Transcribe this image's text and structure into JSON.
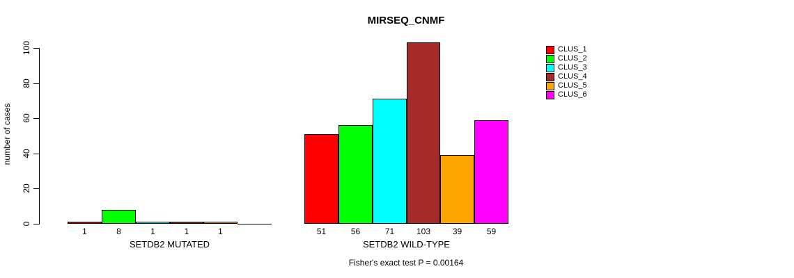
{
  "chart_data": {
    "type": "bar",
    "title": "MIRSEQ_CNMF",
    "xlabel": "",
    "ylabel": "number of cases",
    "ylim": [
      0,
      100
    ],
    "y_ticks": [
      0,
      20,
      40,
      60,
      80,
      100
    ],
    "grid": false,
    "legend_position": "right-inside",
    "series_names": [
      "CLUS_1",
      "CLUS_2",
      "CLUS_3",
      "CLUS_4",
      "CLUS_5",
      "CLUS_6"
    ],
    "colors": [
      "#FF0000",
      "#00FF00",
      "#00FFFF",
      "#A52A2A",
      "#FFA500",
      "#FF00FF"
    ],
    "groups": [
      {
        "label": "SETDB2 MUTATED",
        "values": [
          1,
          8,
          1,
          1,
          1,
          0
        ],
        "bar_labels": [
          "1",
          "8",
          "1",
          "1",
          "1",
          ""
        ]
      },
      {
        "label": "SETDB2 WILD-TYPE",
        "values": [
          51,
          56,
          71,
          103,
          39,
          59
        ],
        "bar_labels": [
          "51",
          "56",
          "71",
          "103",
          "39",
          "59"
        ]
      }
    ],
    "annotation": "Fisher's exact test P = 0.00164"
  },
  "legend": {
    "items": [
      {
        "label": "CLUS_1",
        "color": "#FF0000"
      },
      {
        "label": "CLUS_2",
        "color": "#00FF00"
      },
      {
        "label": "CLUS_3",
        "color": "#00FFFF"
      },
      {
        "label": "CLUS_4",
        "color": "#A52A2A"
      },
      {
        "label": "CLUS_5",
        "color": "#FFA500"
      },
      {
        "label": "CLUS_6",
        "color": "#FF00FF"
      }
    ]
  }
}
